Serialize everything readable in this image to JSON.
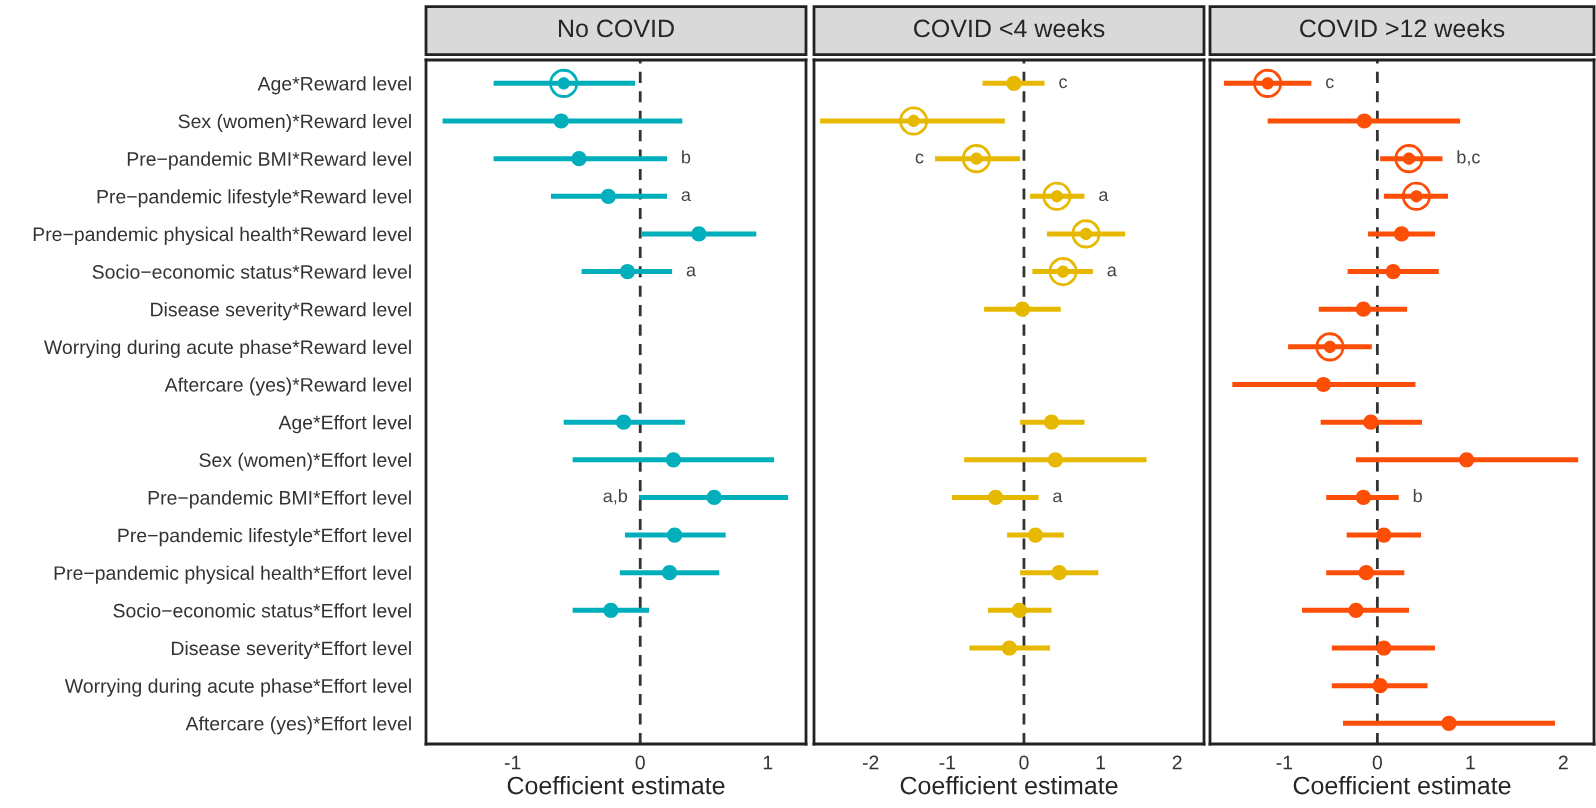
{
  "chart_data": [
    {
      "type": "scatter",
      "orientation": "horizontal",
      "title": "No COVID",
      "xlabel": "Coefficient estimate",
      "xlim": [
        -1.68,
        1.3
      ],
      "xticks": [
        -1,
        0,
        1
      ],
      "categories": [
        "Age*Reward level",
        "Sex (women)*Reward level",
        "Pre−pandemic BMI*Reward level",
        "Pre−pandemic lifestyle*Reward level",
        "Pre−pandemic physical health*Reward level",
        "Socio−economic status*Reward level",
        "Disease severity*Reward level",
        "Worrying during acute phase*Reward level",
        "Aftercare (yes)*Reward level",
        "Age*Effort level",
        "Sex (women)*Effort level",
        "Pre−pandemic BMI*Effort level",
        "Pre−pandemic lifestyle*Effort level",
        "Pre−pandemic physical health*Effort level",
        "Socio−economic status*Effort level",
        "Disease severity*Effort level",
        "Worrying during acute phase*Effort level",
        "Aftercare (yes)*Effort level"
      ],
      "series": [
        {
          "color": "#00afbb",
          "marker": "circle",
          "values": [
            null,
            -0.62,
            -0.48,
            -0.25,
            0.46,
            -0.1,
            null,
            null,
            null,
            -0.13,
            0.26,
            0.58,
            0.27,
            0.23,
            -0.23,
            null,
            null,
            null
          ],
          "errors": [
            null,
            [
              -1.55,
              0.33
            ],
            [
              -1.15,
              0.21
            ],
            [
              -0.7,
              0.21
            ],
            [
              0.01,
              0.91
            ],
            [
              -0.46,
              0.25
            ],
            null,
            null,
            null,
            [
              -0.6,
              0.35
            ],
            [
              -0.53,
              1.05
            ],
            [
              -0.01,
              1.16
            ],
            [
              -0.12,
              0.67
            ],
            [
              -0.16,
              0.62
            ],
            [
              -0.53,
              0.07
            ],
            null,
            null,
            null
          ]
        },
        {
          "color": "#00afbb",
          "marker": "circle",
          "values": [
            -0.6,
            null,
            null,
            null,
            null,
            null,
            null,
            null,
            null,
            null,
            null,
            null,
            null,
            null,
            null,
            null,
            null,
            null
          ],
          "errors": [
            [
              -1.15,
              -0.04
            ],
            null,
            null,
            null,
            null,
            null,
            null,
            null,
            null,
            null,
            null,
            null,
            null,
            null,
            null,
            null,
            null,
            null
          ]
        }
      ],
      "annotations": [
        {
          "text": "b",
          "x": 0.21,
          "y": "Pre−pandemic BMI*Reward level"
        },
        {
          "text": "a",
          "x": 0.21,
          "y": "Pre−pandemic lifestyle*Reward level"
        },
        {
          "text": "a",
          "x": 0.25,
          "y": "Socio−economic status*Reward level"
        },
        {
          "text": "a,b",
          "x": -0.01,
          "y": "Pre−pandemic BMI*Effort level"
        }
      ],
      "ref_lines": [
        {
          "axis": "x",
          "value": 0,
          "line_style": "dashed",
          "color": "#333333"
        }
      ]
    },
    {
      "type": "scatter",
      "orientation": "horizontal",
      "title": "COVID <4 weeks",
      "xlabel": "Coefficient estimate",
      "xlim": [
        -2.74,
        2.35
      ],
      "xticks": [
        -2,
        -1,
        0,
        1,
        2
      ],
      "tick_labels": "x",
      "categories": [
        "Age*Reward level",
        "Sex (women)*Reward level",
        "Pre−pandemic BMI*Reward level",
        "Pre−pandemic lifestyle*Reward level",
        "Pre−pandemic physical health*Reward level",
        "Socio−economic status*Reward level",
        "Disease severity*Reward level",
        "Worrying during acute phase*Reward level",
        "Aftercare (yes)*Reward level",
        "Age*Effort level",
        "Sex (women)*Effort level",
        "Pre−pandemic BMI*Effort level",
        "Pre−pandemic lifestyle*Effort level",
        "Pre−pandemic physical health*Effort level",
        "Socio−economic status*Effort level",
        "Disease severity*Effort level",
        "Worrying during acute phase*Effort level",
        "Aftercare (yes)*Effort level"
      ],
      "series": [
        {
          "color": "#e7b800",
          "marker": "circle",
          "values": [
            -0.13,
            null,
            null,
            null,
            null,
            null,
            -0.02,
            null,
            null,
            0.36,
            0.41,
            -0.37,
            0.15,
            0.46,
            -0.06,
            -0.19,
            null,
            null
          ],
          "errors": [
            [
              -0.54,
              0.27
            ],
            null,
            null,
            null,
            null,
            null,
            [
              -0.52,
              0.48
            ],
            null,
            null,
            [
              -0.05,
              0.79
            ],
            [
              -0.78,
              1.6
            ],
            [
              -0.94,
              0.19
            ],
            [
              -0.22,
              0.52
            ],
            [
              -0.05,
              0.97
            ],
            [
              -0.47,
              0.36
            ],
            [
              -0.71,
              0.34
            ],
            null,
            null
          ]
        },
        {
          "color": "#e7b800",
          "marker": "circle",
          "values": [
            null,
            -1.44,
            -0.62,
            0.43,
            0.81,
            0.51,
            null,
            null,
            null,
            null,
            null,
            null,
            null,
            null,
            null,
            null,
            null,
            null
          ],
          "errors": [
            null,
            [
              -2.66,
              -0.25
            ],
            [
              -1.16,
              -0.05
            ],
            [
              0.08,
              0.79
            ],
            [
              0.3,
              1.32
            ],
            [
              0.11,
              0.9
            ],
            null,
            null,
            null,
            null,
            null,
            null,
            null,
            null,
            null,
            null,
            null,
            null
          ]
        }
      ],
      "annotations": [
        {
          "text": "c",
          "x": 0.27,
          "y": "Age*Reward level"
        },
        {
          "text": "c",
          "x": -1.16,
          "y": "Pre−pandemic BMI*Reward level"
        },
        {
          "text": "a",
          "x": 0.79,
          "y": "Pre−pandemic lifestyle*Reward level"
        },
        {
          "text": "a",
          "x": 0.9,
          "y": "Socio−economic status*Reward level"
        },
        {
          "text": "a",
          "x": 0.19,
          "y": "Pre−pandemic BMI*Effort level"
        }
      ],
      "ref_lines": [
        {
          "axis": "x",
          "value": 0,
          "line_style": "dashed",
          "color": "#333333"
        }
      ]
    },
    {
      "type": "scatter",
      "orientation": "horizontal",
      "title": "COVID >12 weeks",
      "xlabel": "Coefficient estimate",
      "xlim": [
        -1.8,
        2.33
      ],
      "xticks": [
        -1,
        0,
        1,
        2
      ],
      "tick_labels": "x",
      "categories": [
        "Age*Reward level",
        "Sex (women)*Reward level",
        "Pre−pandemic BMI*Reward level",
        "Pre−pandemic lifestyle*Reward level",
        "Pre−pandemic physical health*Reward level",
        "Socio−economic status*Reward level",
        "Disease severity*Reward level",
        "Worrying during acute phase*Reward level",
        "Aftercare (yes)*Reward level",
        "Age*Effort level",
        "Sex (women)*Effort level",
        "Pre−pandemic BMI*Effort level",
        "Pre−pandemic lifestyle*Effort level",
        "Pre−pandemic physical health*Effort level",
        "Socio−economic status*Effort level",
        "Disease severity*Effort level",
        "Worrying during acute phase*Effort level",
        "Aftercare (yes)*Effort level"
      ],
      "series": [
        {
          "color": "#fc4e07",
          "marker": "circle",
          "values": [
            null,
            -0.14,
            null,
            null,
            0.26,
            0.17,
            -0.15,
            null,
            -0.58,
            -0.07,
            0.96,
            -0.15,
            0.07,
            -0.12,
            -0.23,
            0.07,
            0.03,
            0.77
          ],
          "errors": [
            null,
            [
              -1.18,
              0.89
            ],
            null,
            null,
            [
              -0.1,
              0.62
            ],
            [
              -0.32,
              0.66
            ],
            [
              -0.63,
              0.32
            ],
            null,
            [
              -1.56,
              0.41
            ],
            [
              -0.61,
              0.48
            ],
            [
              -0.23,
              2.16
            ],
            [
              -0.55,
              0.23
            ],
            [
              -0.33,
              0.47
            ],
            [
              -0.55,
              0.29
            ],
            [
              -0.81,
              0.34
            ],
            [
              -0.49,
              0.62
            ],
            [
              -0.49,
              0.54
            ],
            [
              -0.37,
              1.91
            ]
          ]
        },
        {
          "color": "#fc4e07",
          "marker": "circle",
          "values": [
            -1.18,
            null,
            0.34,
            0.42,
            null,
            null,
            null,
            -0.51,
            null,
            null,
            null,
            null,
            null,
            null,
            null,
            null,
            null,
            null
          ],
          "errors": [
            [
              -1.65,
              -0.71
            ],
            null,
            [
              0.03,
              0.7
            ],
            [
              0.07,
              0.76
            ],
            null,
            null,
            null,
            [
              -0.96,
              -0.06
            ],
            null,
            null,
            null,
            null,
            null,
            null,
            null,
            null,
            null,
            null
          ]
        }
      ],
      "annotations": [
        {
          "text": "c",
          "x": -0.71,
          "y": "Age*Reward level"
        },
        {
          "text": "b,c",
          "x": 0.7,
          "y": "Pre−pandemic BMI*Reward level"
        },
        {
          "text": "b",
          "x": 0.23,
          "y": "Pre−pandemic BMI*Effort level"
        }
      ],
      "ref_lines": [
        {
          "axis": "x",
          "value": 0,
          "line_style": "dashed",
          "color": "#333333"
        }
      ]
    }
  ]
}
